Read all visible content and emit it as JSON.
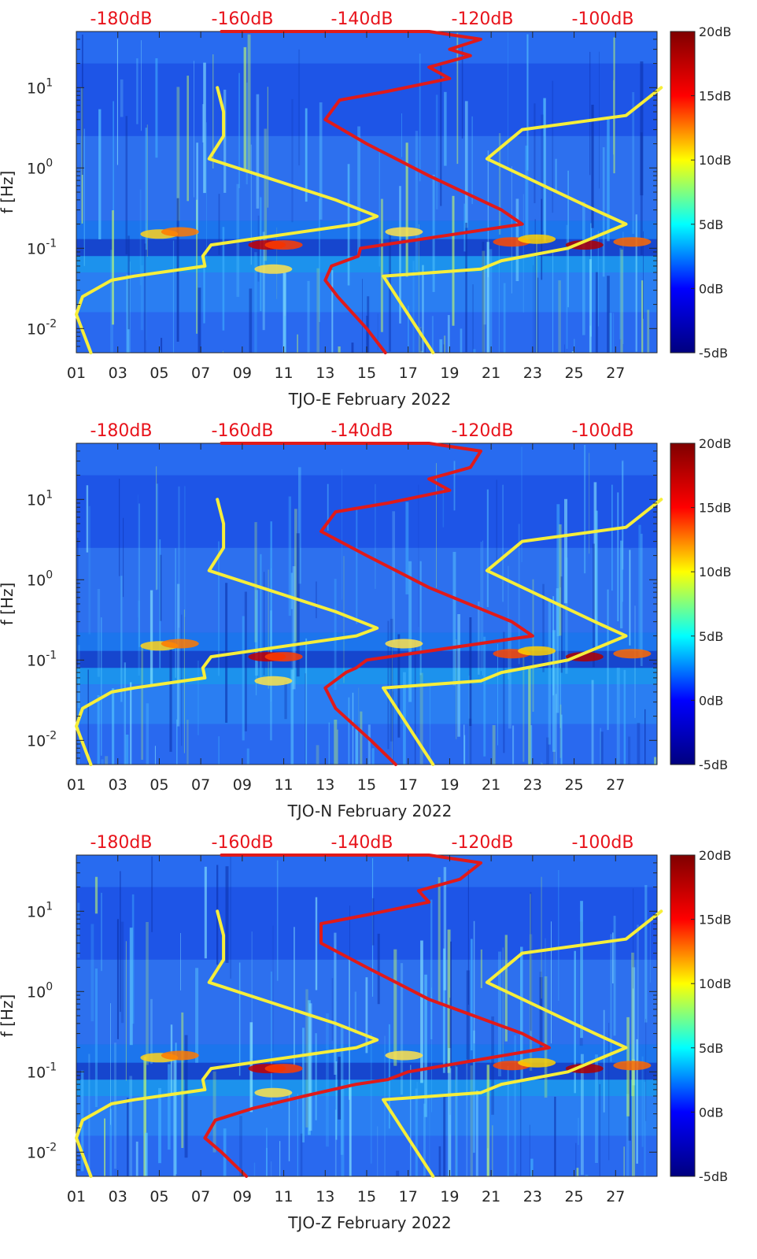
{
  "colors": {
    "noise_model_curves": "#f6ee3a",
    "power_overlay_curve": "#e01a1a",
    "top_scale_text": "#e8131b",
    "colormap": [
      "#00007f",
      "#0000ff",
      "#00ffff",
      "#ffff00",
      "#ff0000",
      "#7f0000"
    ]
  },
  "chart_data": [
    {
      "type": "heatmap",
      "xlabel": "TJO-E February 2022",
      "ylabel": "f [Hz]",
      "x_ticks": [
        "01",
        "03",
        "05",
        "07",
        "09",
        "11",
        "13",
        "15",
        "17",
        "19",
        "21",
        "23",
        "25",
        "27"
      ],
      "y_scale": "log",
      "ylim": [
        0.005,
        50
      ],
      "y_ticks": [
        {
          "value": 0.01,
          "base": "10",
          "exp": "-2"
        },
        {
          "value": 0.1,
          "base": "10",
          "exp": "-1"
        },
        {
          "value": 1,
          "base": "10",
          "exp": "0"
        },
        {
          "value": 10,
          "base": "10",
          "exp": "1"
        }
      ],
      "top_scale_labels": [
        "-180dB",
        "-160dB",
        "-140dB",
        "-120dB",
        "-100dB"
      ],
      "colorbar": {
        "min": -5,
        "max": 20,
        "labels": [
          "-5dB",
          "0dB",
          "5dB",
          "10dB",
          "15dB",
          "20dB"
        ]
      },
      "overlay_lines": [
        {
          "color": "yellow",
          "points": [
            [
              0.7,
              0.005
            ],
            [
              0.0,
              0.015
            ],
            [
              0.3,
              0.025
            ],
            [
              1.7,
              0.04
            ],
            [
              2.8,
              0.045
            ],
            [
              6.2,
              0.06
            ],
            [
              6.1,
              0.08
            ],
            [
              6.5,
              0.11
            ],
            [
              13.5,
              0.2
            ],
            [
              14.5,
              0.25
            ],
            [
              12.5,
              0.4
            ],
            [
              6.4,
              1.3
            ],
            [
              7.1,
              2.5
            ],
            [
              7.1,
              5
            ],
            [
              6.8,
              10
            ]
          ]
        },
        {
          "color": "yellow",
          "points": [
            [
              17.2,
              0.005
            ],
            [
              14.8,
              0.045
            ],
            [
              19.5,
              0.055
            ],
            [
              20.5,
              0.07
            ],
            [
              23.7,
              0.1
            ],
            [
              26.5,
              0.2
            ],
            [
              25,
              0.3
            ],
            [
              19.8,
              1.3
            ],
            [
              21.5,
              3
            ],
            [
              26.5,
              4.5
            ],
            [
              28.2,
              10
            ]
          ]
        },
        {
          "color": "red",
          "points": [
            [
              14.9,
              0.005
            ],
            [
              14.0,
              0.01
            ],
            [
              12.6,
              0.025
            ],
            [
              12.0,
              0.04
            ],
            [
              12.3,
              0.06
            ],
            [
              13.6,
              0.08
            ],
            [
              13.7,
              0.1
            ],
            [
              21.5,
              0.2
            ],
            [
              20.5,
              0.3
            ],
            [
              17,
              0.8
            ],
            [
              14,
              2
            ],
            [
              12,
              4
            ],
            [
              12.7,
              7
            ],
            [
              15,
              9
            ],
            [
              18,
              13
            ],
            [
              17,
              18
            ],
            [
              19,
              25
            ],
            [
              18,
              30
            ],
            [
              19.5,
              40
            ],
            [
              17,
              50
            ],
            [
              7,
              50
            ]
          ]
        }
      ]
    },
    {
      "type": "heatmap",
      "xlabel": "TJO-N February 2022",
      "ylabel": "f [Hz]",
      "x_ticks": [
        "01",
        "03",
        "05",
        "07",
        "09",
        "11",
        "13",
        "15",
        "17",
        "19",
        "21",
        "23",
        "25",
        "27"
      ],
      "y_scale": "log",
      "ylim": [
        0.005,
        50
      ],
      "y_ticks": [
        {
          "value": 0.01,
          "base": "10",
          "exp": "-2"
        },
        {
          "value": 0.1,
          "base": "10",
          "exp": "-1"
        },
        {
          "value": 1,
          "base": "10",
          "exp": "0"
        },
        {
          "value": 10,
          "base": "10",
          "exp": "1"
        }
      ],
      "top_scale_labels": [
        "-180dB",
        "-160dB",
        "-140dB",
        "-120dB",
        "-100dB"
      ],
      "colorbar": {
        "min": -5,
        "max": 20,
        "labels": [
          "-5dB",
          "0dB",
          "5dB",
          "10dB",
          "15dB",
          "20dB"
        ]
      },
      "overlay_lines": [
        {
          "color": "yellow",
          "points": [
            [
              0.7,
              0.005
            ],
            [
              0.0,
              0.015
            ],
            [
              0.3,
              0.025
            ],
            [
              1.7,
              0.04
            ],
            [
              2.8,
              0.045
            ],
            [
              6.2,
              0.06
            ],
            [
              6.1,
              0.08
            ],
            [
              6.5,
              0.11
            ],
            [
              13.5,
              0.2
            ],
            [
              14.5,
              0.25
            ],
            [
              12.5,
              0.4
            ],
            [
              6.4,
              1.3
            ],
            [
              7.1,
              2.5
            ],
            [
              7.1,
              5
            ],
            [
              6.8,
              10
            ]
          ]
        },
        {
          "color": "yellow",
          "points": [
            [
              17.2,
              0.005
            ],
            [
              14.8,
              0.045
            ],
            [
              19.5,
              0.055
            ],
            [
              20.5,
              0.07
            ],
            [
              23.7,
              0.1
            ],
            [
              26.5,
              0.2
            ],
            [
              25,
              0.3
            ],
            [
              19.8,
              1.3
            ],
            [
              21.5,
              3
            ],
            [
              26.5,
              4.5
            ],
            [
              28.2,
              10
            ]
          ]
        },
        {
          "color": "red",
          "points": [
            [
              15.4,
              0.005
            ],
            [
              14.2,
              0.01
            ],
            [
              12.5,
              0.025
            ],
            [
              12.0,
              0.045
            ],
            [
              13.0,
              0.07
            ],
            [
              13.5,
              0.08
            ],
            [
              14.0,
              0.1
            ],
            [
              22.0,
              0.2
            ],
            [
              21.0,
              0.3
            ],
            [
              17,
              0.8
            ],
            [
              14,
              2
            ],
            [
              11.8,
              4
            ],
            [
              12.5,
              7
            ],
            [
              15,
              9
            ],
            [
              18,
              13
            ],
            [
              17,
              18
            ],
            [
              19,
              25
            ],
            [
              19.5,
              40
            ],
            [
              17,
              50
            ],
            [
              7,
              50
            ]
          ]
        }
      ]
    },
    {
      "type": "heatmap",
      "xlabel": "TJO-Z February 2022",
      "ylabel": "f [Hz]",
      "x_ticks": [
        "01",
        "03",
        "05",
        "07",
        "09",
        "11",
        "13",
        "15",
        "17",
        "19",
        "21",
        "23",
        "25",
        "27"
      ],
      "y_scale": "log",
      "ylim": [
        0.005,
        50
      ],
      "y_ticks": [
        {
          "value": 0.01,
          "base": "10",
          "exp": "-2"
        },
        {
          "value": 0.1,
          "base": "10",
          "exp": "-1"
        },
        {
          "value": 1,
          "base": "10",
          "exp": "0"
        },
        {
          "value": 10,
          "base": "10",
          "exp": "1"
        }
      ],
      "top_scale_labels": [
        "-180dB",
        "-160dB",
        "-140dB",
        "-120dB",
        "-100dB"
      ],
      "colorbar": {
        "min": -5,
        "max": 20,
        "labels": [
          "-5dB",
          "0dB",
          "5dB",
          "10dB",
          "15dB",
          "20dB"
        ]
      },
      "overlay_lines": [
        {
          "color": "yellow",
          "points": [
            [
              0.7,
              0.005
            ],
            [
              0.0,
              0.015
            ],
            [
              0.3,
              0.025
            ],
            [
              1.7,
              0.04
            ],
            [
              2.8,
              0.045
            ],
            [
              6.2,
              0.06
            ],
            [
              6.1,
              0.08
            ],
            [
              6.5,
              0.11
            ],
            [
              13.5,
              0.2
            ],
            [
              14.5,
              0.25
            ],
            [
              12.5,
              0.4
            ],
            [
              6.4,
              1.3
            ],
            [
              7.1,
              2.5
            ],
            [
              7.1,
              5
            ],
            [
              6.8,
              10
            ]
          ]
        },
        {
          "color": "yellow",
          "points": [
            [
              17.2,
              0.005
            ],
            [
              14.8,
              0.045
            ],
            [
              19.5,
              0.055
            ],
            [
              20.5,
              0.07
            ],
            [
              23.7,
              0.1
            ],
            [
              26.5,
              0.2
            ],
            [
              25,
              0.3
            ],
            [
              19.8,
              1.3
            ],
            [
              21.5,
              3
            ],
            [
              26.5,
              4.5
            ],
            [
              28.2,
              10
            ]
          ]
        },
        {
          "color": "red",
          "points": [
            [
              8.2,
              0.005
            ],
            [
              7.0,
              0.01
            ],
            [
              6.2,
              0.015
            ],
            [
              6.7,
              0.025
            ],
            [
              8.5,
              0.035
            ],
            [
              11,
              0.05
            ],
            [
              13.5,
              0.07
            ],
            [
              15,
              0.08
            ],
            [
              16,
              0.1
            ],
            [
              22.8,
              0.2
            ],
            [
              21.5,
              0.3
            ],
            [
              17,
              0.8
            ],
            [
              14,
              2
            ],
            [
              11.8,
              4
            ],
            [
              11.8,
              7
            ],
            [
              14,
              9
            ],
            [
              17,
              13
            ],
            [
              16.5,
              18
            ],
            [
              18.5,
              25
            ],
            [
              19.5,
              40
            ],
            [
              17,
              50
            ],
            [
              7,
              50
            ]
          ]
        }
      ]
    }
  ]
}
